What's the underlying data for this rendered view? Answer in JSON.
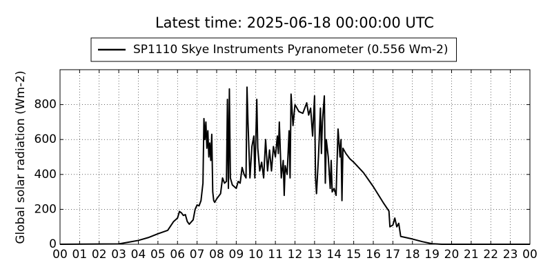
{
  "chart_data": {
    "type": "line",
    "title": "Latest time: 2025-06-18 00:00:00 UTC",
    "y_label": "Global solar radiation (Wm-2)",
    "grid": true,
    "legend_position": "top",
    "xlim": [
      0,
      24
    ],
    "xticks": [
      {
        "value": 0,
        "label": "00"
      },
      {
        "value": 1,
        "label": "01"
      },
      {
        "value": 2,
        "label": "02"
      },
      {
        "value": 3,
        "label": "03"
      },
      {
        "value": 4,
        "label": "04"
      },
      {
        "value": 5,
        "label": "05"
      },
      {
        "value": 6,
        "label": "06"
      },
      {
        "value": 7,
        "label": "07"
      },
      {
        "value": 8,
        "label": "08"
      },
      {
        "value": 9,
        "label": "09"
      },
      {
        "value": 10,
        "label": "10"
      },
      {
        "value": 11,
        "label": "11"
      },
      {
        "value": 12,
        "label": "12"
      },
      {
        "value": 13,
        "label": "13"
      },
      {
        "value": 14,
        "label": "14"
      },
      {
        "value": 15,
        "label": "15"
      },
      {
        "value": 16,
        "label": "16"
      },
      {
        "value": 17,
        "label": "17"
      },
      {
        "value": 18,
        "label": "18"
      },
      {
        "value": 19,
        "label": "19"
      },
      {
        "value": 20,
        "label": "20"
      },
      {
        "value": 21,
        "label": "21"
      },
      {
        "value": 22,
        "label": "22"
      },
      {
        "value": 23,
        "label": "23"
      },
      {
        "value": 24,
        "label": "00"
      }
    ],
    "ylim": [
      0,
      1000
    ],
    "yticks": [
      0,
      200,
      400,
      600,
      800
    ],
    "x": [
      0,
      3,
      3.5,
      4,
      4.5,
      5,
      5.3,
      5.5,
      5.8,
      6,
      6.1,
      6.2,
      6.3,
      6.4,
      6.5,
      6.6,
      6.8,
      6.9,
      7,
      7.1,
      7.2,
      7.3,
      7.35,
      7.4,
      7.45,
      7.5,
      7.55,
      7.6,
      7.65,
      7.7,
      7.75,
      7.8,
      7.85,
      7.9,
      8,
      8.2,
      8.3,
      8.4,
      8.5,
      8.55,
      8.6,
      8.65,
      8.7,
      8.8,
      9,
      9.1,
      9.2,
      9.3,
      9.4,
      9.5,
      9.55,
      9.6,
      9.7,
      9.8,
      9.9,
      9.95,
      10.05,
      10.1,
      10.2,
      10.3,
      10.4,
      10.5,
      10.6,
      10.7,
      10.8,
      10.9,
      11,
      11.1,
      11.15,
      11.2,
      11.3,
      11.4,
      11.45,
      11.5,
      11.6,
      11.7,
      11.75,
      11.8,
      11.9,
      12,
      12.2,
      12.4,
      12.6,
      12.7,
      12.8,
      12.9,
      13,
      13.05,
      13.1,
      13.2,
      13.3,
      13.35,
      13.4,
      13.5,
      13.55,
      13.6,
      13.7,
      13.8,
      13.85,
      13.9,
      14,
      14.1,
      14.2,
      14.3,
      14.35,
      14.4,
      14.45,
      14.6,
      14.8,
      15,
      15.5,
      16,
      16.5,
      16.8,
      16.85,
      17,
      17.1,
      17.2,
      17.3,
      17.4,
      17.6,
      18,
      18.5,
      19,
      19.5,
      24
    ],
    "series": [
      {
        "name": "SP1110 Skye Instruments Pyranometer (0.556 Wm-2)",
        "color": "#000000",
        "values": [
          0,
          2,
          12,
          22,
          38,
          60,
          72,
          80,
          130,
          150,
          188,
          180,
          165,
          170,
          130,
          115,
          140,
          200,
          225,
          220,
          250,
          350,
          720,
          600,
          700,
          550,
          650,
          500,
          580,
          480,
          630,
          300,
          250,
          240,
          260,
          290,
          380,
          350,
          360,
          830,
          320,
          890,
          380,
          340,
          320,
          360,
          350,
          440,
          400,
          380,
          900,
          700,
          380,
          560,
          620,
          380,
          830,
          550,
          420,
          470,
          380,
          600,
          420,
          540,
          420,
          560,
          500,
          620,
          520,
          700,
          380,
          480,
          280,
          450,
          400,
          650,
          380,
          860,
          680,
          800,
          760,
          750,
          810,
          740,
          780,
          620,
          850,
          380,
          290,
          500,
          780,
          520,
          700,
          850,
          350,
          600,
          500,
          320,
          480,
          300,
          320,
          280,
          660,
          500,
          600,
          250,
          550,
          520,
          490,
          470,
          410,
          330,
          240,
          190,
          100,
          110,
          150,
          100,
          120,
          45,
          40,
          30,
          15,
          3,
          0,
          0
        ]
      }
    ]
  }
}
